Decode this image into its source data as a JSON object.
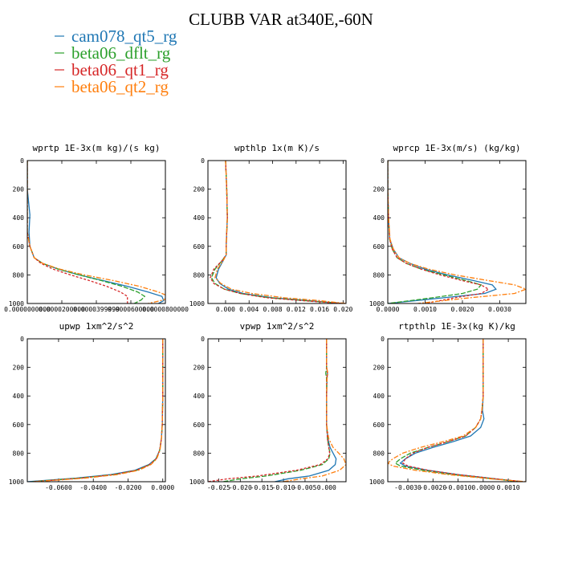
{
  "figure": {
    "title": "CLUBB VAR at340E,-60N",
    "legend": [
      {
        "name": "cam078_qt5_rg",
        "color": "#1f77b4"
      },
      {
        "name": "beta06_dflt_rg",
        "color": "#2ca02c"
      },
      {
        "name": "beta06_qt1_rg",
        "color": "#d62728"
      },
      {
        "name": "beta06_qt2_rg",
        "color": "#ff7f0e"
      }
    ]
  },
  "chart_data": [
    {
      "type": "line",
      "title": "wprtp  1E-3x(m kg)/(s kg)",
      "xlim": [
        0,
        8e-05
      ],
      "ylim": [
        1000,
        0
      ],
      "x_ticks": [
        0,
        2e-05,
        4e-05,
        6e-05,
        8e-05
      ],
      "x_tick_labels": [
        "0.0000000000",
        "0.0000200000",
        "0.0000399999",
        "0.0000600000",
        "0.0000800000"
      ],
      "y_ticks": [
        0,
        200,
        400,
        600,
        800,
        1000
      ],
      "y_tick_labels": [
        "0",
        "200",
        "400",
        "600",
        "800",
        "1000"
      ],
      "series": [
        {
          "color": "#1f77b4",
          "y": [
            0,
            200,
            380,
            500,
            600,
            680,
            720,
            760,
            800,
            840,
            880,
            920,
            950,
            980,
            1000
          ],
          "x": [
            0,
            0,
            1.5e-06,
            1e-06,
            1.5e-06,
            4e-06,
            9e-06,
            1.8e-05,
            3e-05,
            4.4e-05,
            5.8e-05,
            7e-05,
            7.8e-05,
            7.9e-05,
            7.6e-05
          ]
        },
        {
          "color": "#2ca02c",
          "y": [
            0,
            200,
            400,
            500,
            600,
            680,
            720,
            760,
            800,
            840,
            880,
            920,
            950,
            975,
            1000
          ],
          "x": [
            0,
            0,
            0,
            0,
            1.5e-06,
            4e-06,
            9e-06,
            1.8e-05,
            3e-05,
            4.3e-05,
            5.5e-05,
            6.4e-05,
            6.8e-05,
            6.6e-05,
            6.2e-05
          ]
        },
        {
          "color": "#d62728",
          "y": [
            0,
            200,
            400,
            500,
            600,
            680,
            720,
            760,
            800,
            840,
            880,
            920,
            950,
            975,
            1000
          ],
          "x": [
            0,
            0,
            0,
            0,
            1.5e-06,
            4e-06,
            8e-06,
            1.5e-05,
            2.5e-05,
            3.6e-05,
            4.6e-05,
            5.4e-05,
            5.8e-05,
            5.8e-05,
            5.8e-05
          ]
        },
        {
          "color": "#ff7f0e",
          "y": [
            0,
            200,
            400,
            500,
            600,
            680,
            720,
            760,
            800,
            840,
            880,
            920,
            950,
            975,
            1000
          ],
          "x": [
            0,
            0,
            0,
            0,
            1.5e-06,
            4e-06,
            9e-06,
            1.9e-05,
            3.3e-05,
            5e-05,
            6.5e-05,
            7.6e-05,
            8.2e-05,
            7.9e-05,
            7e-05
          ]
        }
      ]
    },
    {
      "type": "line",
      "title": "wpthlp  1x(m K)/s",
      "xlim": [
        -0.003,
        0.0205
      ],
      "ylim": [
        1000,
        0
      ],
      "x_ticks": [
        0,
        0.004,
        0.008,
        0.012,
        0.016,
        0.02
      ],
      "x_tick_labels": [
        "0.000",
        "0.004",
        "0.008",
        "0.012",
        "0.016",
        "0.020"
      ],
      "y_ticks": [
        0,
        200,
        400,
        600,
        800,
        1000
      ],
      "y_tick_labels": [
        "0",
        "200",
        "400",
        "600",
        "800",
        "1000"
      ],
      "series": [
        {
          "color": "#1f77b4",
          "y": [
            0,
            200,
            400,
            600,
            660,
            700,
            760,
            820,
            860,
            900,
            930,
            960,
            980,
            1000
          ],
          "x": [
            0,
            0.0002,
            0.0003,
            0.0001,
            0.0001,
            -0.0004,
            -0.0012,
            -0.0016,
            -0.001,
            0.0005,
            0.003,
            0.008,
            0.014,
            0.02
          ]
        },
        {
          "color": "#2ca02c",
          "y": [
            0,
            200,
            400,
            600,
            660,
            700,
            760,
            820,
            860,
            900,
            930,
            960,
            980,
            1000
          ],
          "x": [
            0,
            0.0002,
            0.0003,
            0.0001,
            0.0001,
            -0.0006,
            -0.0018,
            -0.0024,
            -0.0018,
            -0.0002,
            0.0025,
            0.0075,
            0.0135,
            0.02
          ]
        },
        {
          "color": "#d62728",
          "y": [
            0,
            200,
            400,
            600,
            660,
            700,
            760,
            820,
            860,
            900,
            930,
            960,
            980,
            1000
          ],
          "x": [
            0,
            0.0002,
            0.0003,
            0.0001,
            0.0001,
            -0.0006,
            -0.002,
            -0.0026,
            -0.002,
            -0.0002,
            0.0025,
            0.007,
            0.013,
            0.02
          ]
        },
        {
          "color": "#ff7f0e",
          "y": [
            0,
            200,
            400,
            600,
            660,
            700,
            760,
            820,
            860,
            900,
            930,
            960,
            980,
            1000
          ],
          "x": [
            0,
            0.0002,
            0.0003,
            0.0001,
            0.0001,
            -0.0004,
            -0.0014,
            -0.0018,
            -0.0008,
            0.001,
            0.0045,
            0.01,
            0.016,
            0.0205
          ]
        }
      ]
    },
    {
      "type": "line",
      "title": "wprcp  1E-3x(m/s) (kg/kg)",
      "xlim": [
        0,
        0.0037
      ],
      "ylim": [
        1000,
        0
      ],
      "x_ticks": [
        0,
        0.001,
        0.002,
        0.003
      ],
      "x_tick_labels": [
        "0.0000",
        "0.0010",
        "0.0020",
        "0.0030"
      ],
      "y_ticks": [
        0,
        200,
        400,
        600,
        800,
        1000
      ],
      "y_tick_labels": [
        "0",
        "200",
        "400",
        "600",
        "800",
        "1000"
      ],
      "series": [
        {
          "color": "#1f77b4",
          "y": [
            0,
            200,
            400,
            550,
            620,
            680,
            720,
            760,
            800,
            840,
            870,
            900,
            930,
            960,
            1000
          ],
          "x": [
            0,
            0,
            2e-05,
            5e-05,
            0.00015,
            0.0003,
            0.0006,
            0.001,
            0.0016,
            0.0023,
            0.0028,
            0.0029,
            0.0026,
            0.0015,
            0
          ]
        },
        {
          "color": "#2ca02c",
          "y": [
            0,
            200,
            400,
            550,
            620,
            680,
            720,
            760,
            800,
            840,
            870,
            900,
            930,
            960,
            1000
          ],
          "x": [
            0,
            0,
            2e-05,
            5e-05,
            0.00012,
            0.00025,
            0.0005,
            0.0009,
            0.0015,
            0.0021,
            0.0025,
            0.0024,
            0.002,
            0.0012,
            0
          ]
        },
        {
          "color": "#d62728",
          "y": [
            0,
            200,
            400,
            550,
            620,
            680,
            720,
            760,
            800,
            840,
            870,
            900,
            930,
            960,
            1000
          ],
          "x": [
            0,
            0,
            2e-05,
            5e-05,
            0.00012,
            0.00025,
            0.0005,
            0.0009,
            0.0014,
            0.002,
            0.0025,
            0.0027,
            0.0025,
            0.0018,
            0.001
          ]
        },
        {
          "color": "#ff7f0e",
          "y": [
            0,
            200,
            400,
            550,
            620,
            680,
            720,
            760,
            800,
            840,
            870,
            900,
            930,
            960,
            1000
          ],
          "x": [
            0,
            0,
            2e-05,
            6e-05,
            0.00015,
            0.0003,
            0.0006,
            0.0011,
            0.0018,
            0.0027,
            0.0034,
            0.0037,
            0.0034,
            0.0022,
            0.0008
          ]
        }
      ]
    },
    {
      "type": "line",
      "title": "upwp  1xm^2/s^2",
      "xlim": [
        -0.078,
        0.0015
      ],
      "ylim": [
        1000,
        0
      ],
      "x_ticks": [
        -0.06,
        -0.04,
        -0.02,
        0
      ],
      "x_tick_labels": [
        "-0.0600",
        "-0.0400",
        "-0.0200",
        "0.0000"
      ],
      "y_ticks": [
        0,
        200,
        400,
        600,
        800,
        1000
      ],
      "y_tick_labels": [
        "0",
        "200",
        "400",
        "600",
        "800",
        "1000"
      ],
      "series": [
        {
          "color": "#1f77b4",
          "y": [
            0,
            200,
            400,
            600,
            700,
            780,
            840,
            880,
            920,
            950,
            975,
            1000
          ],
          "x": [
            0,
            0,
            0,
            -0.0003,
            -0.0008,
            -0.0018,
            -0.004,
            -0.008,
            -0.016,
            -0.03,
            -0.05,
            -0.078
          ]
        },
        {
          "color": "#2ca02c",
          "y": [
            0,
            200,
            400,
            600,
            700,
            780,
            840,
            880,
            920,
            950,
            975,
            1000
          ],
          "x": [
            0,
            0,
            0,
            -0.0003,
            -0.0008,
            -0.0018,
            -0.0038,
            -0.0075,
            -0.015,
            -0.028,
            -0.048,
            -0.076
          ]
        },
        {
          "color": "#d62728",
          "y": [
            0,
            200,
            400,
            600,
            700,
            780,
            840,
            880,
            920,
            950,
            975,
            1000
          ],
          "x": [
            0,
            0,
            0,
            -0.0003,
            -0.0008,
            -0.0018,
            -0.0038,
            -0.0075,
            -0.015,
            -0.028,
            -0.047,
            -0.075
          ]
        },
        {
          "color": "#ff7f0e",
          "y": [
            0,
            200,
            400,
            600,
            700,
            780,
            840,
            880,
            920,
            950,
            975,
            1000
          ],
          "x": [
            0,
            0,
            0,
            -0.0003,
            -0.0008,
            -0.0016,
            -0.0035,
            -0.0068,
            -0.014,
            -0.026,
            -0.045,
            -0.074
          ]
        }
      ]
    },
    {
      "type": "line",
      "title": "vpwp  1xm^2/s^2",
      "xlim": [
        -0.0275,
        0.0045
      ],
      "ylim": [
        1000,
        0
      ],
      "x_ticks": [
        -0.025,
        -0.02,
        -0.015,
        -0.01,
        -0.005,
        0
      ],
      "x_tick_labels": [
        "-0.025",
        "-0.020",
        "-0.015",
        "-0.010",
        "-0.005",
        "0.000"
      ],
      "y_ticks": [
        0,
        200,
        400,
        600,
        800,
        1000
      ],
      "y_tick_labels": [
        "0",
        "200",
        "400",
        "600",
        "800",
        "1000"
      ],
      "series": [
        {
          "color": "#1f77b4",
          "y": [
            0,
            200,
            240,
            280,
            400,
            600,
            700,
            760,
            800,
            840,
            880,
            920,
            960,
            980,
            1000
          ],
          "x": [
            0,
            0,
            0.0002,
            0.0001,
            0,
            0,
            0.0003,
            0.0008,
            0.0015,
            0.0022,
            0.002,
            0.0005,
            -0.004,
            -0.009,
            -0.012
          ]
        },
        {
          "color": "#2ca02c",
          "y": [
            0,
            200,
            240,
            280,
            400,
            600,
            700,
            760,
            800,
            840,
            880,
            920,
            960,
            980,
            1000
          ],
          "x": [
            0,
            0,
            -0.0002,
            0,
            0,
            0,
            0.0002,
            0.0005,
            0.0008,
            0.0005,
            -0.001,
            -0.006,
            -0.014,
            -0.02,
            -0.024
          ]
        },
        {
          "color": "#d62728",
          "y": [
            0,
            200,
            240,
            280,
            400,
            600,
            700,
            760,
            800,
            840,
            880,
            920,
            960,
            980,
            1000
          ],
          "x": [
            0,
            0,
            0.0002,
            0,
            0,
            0,
            0.0002,
            0.0005,
            0.0007,
            0.0003,
            -0.0015,
            -0.007,
            -0.016,
            -0.023,
            -0.0275
          ]
        },
        {
          "color": "#ff7f0e",
          "y": [
            0,
            200,
            240,
            280,
            400,
            600,
            700,
            760,
            800,
            840,
            880,
            920,
            960,
            980,
            1000
          ],
          "x": [
            0,
            0,
            0.0003,
            0.0001,
            0,
            0,
            0.0005,
            0.0015,
            0.0028,
            0.004,
            0.0045,
            0.003,
            -0.001,
            -0.006,
            -0.01
          ]
        }
      ]
    },
    {
      "type": "line",
      "title": "rtpthlp  1E-3x(kg K)/kg",
      "xlim": [
        -0.0038,
        0.0017
      ],
      "ylim": [
        1000,
        0
      ],
      "x_ticks": [
        -0.003,
        -0.002,
        -0.001,
        0,
        0.001
      ],
      "x_tick_labels": [
        "-0.0030",
        "-0.0020",
        "-0.0010",
        "0.0000",
        "0.0010"
      ],
      "y_ticks": [
        0,
        200,
        400,
        600,
        800,
        1000
      ],
      "y_tick_labels": [
        "0",
        "200",
        "400",
        "600",
        "800",
        "1000"
      ],
      "series": [
        {
          "color": "#1f77b4",
          "y": [
            0,
            200,
            400,
            500,
            560,
            620,
            680,
            720,
            760,
            800,
            840,
            870,
            890,
            920,
            950,
            980,
            1000
          ],
          "x": [
            0,
            0,
            0,
            -3e-05,
            3e-05,
            -0.0001,
            -0.0005,
            -0.0012,
            -0.002,
            -0.0027,
            -0.0031,
            -0.0033,
            -0.0031,
            -0.0022,
            -0.001,
            0.0005,
            0.0015
          ]
        },
        {
          "color": "#2ca02c",
          "y": [
            0,
            200,
            400,
            500,
            560,
            620,
            680,
            720,
            760,
            800,
            840,
            870,
            890,
            920,
            950,
            980,
            1000
          ],
          "x": [
            0,
            0,
            0,
            -5e-05,
            -0.0001,
            -0.0003,
            -0.0007,
            -0.0014,
            -0.0022,
            -0.0029,
            -0.0033,
            -0.0035,
            -0.0033,
            -0.0024,
            -0.0012,
            0.0004,
            0.0015
          ]
        },
        {
          "color": "#d62728",
          "y": [
            0,
            200,
            400,
            500,
            560,
            620,
            680,
            720,
            760,
            800,
            840,
            870,
            890,
            920,
            950,
            980,
            1000
          ],
          "x": [
            0,
            0,
            0,
            -5e-05,
            -0.0001,
            -0.0003,
            -0.0007,
            -0.0014,
            -0.0022,
            -0.0028,
            -0.0031,
            -0.0032,
            -0.003,
            -0.0022,
            -0.001,
            0.0005,
            0.0016
          ]
        },
        {
          "color": "#ff7f0e",
          "y": [
            0,
            200,
            400,
            500,
            560,
            620,
            680,
            720,
            760,
            800,
            840,
            870,
            890,
            920,
            950,
            980,
            1000
          ],
          "x": [
            0,
            0,
            0,
            -5e-05,
            -0.0001,
            -0.0003,
            -0.0008,
            -0.0016,
            -0.0025,
            -0.0032,
            -0.0036,
            -0.0038,
            -0.0036,
            -0.0027,
            -0.0014,
            0.0003,
            0.0017
          ]
        }
      ]
    }
  ]
}
